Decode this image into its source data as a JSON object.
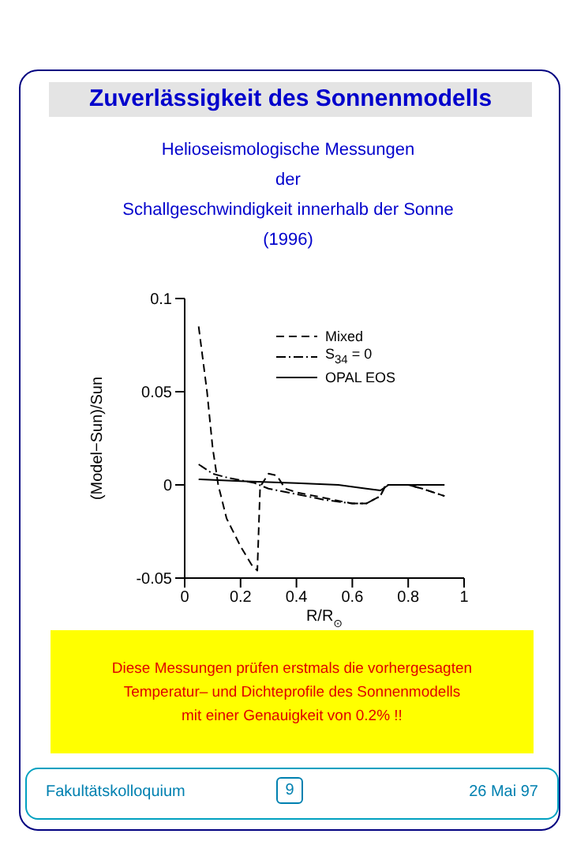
{
  "chart_data": {
    "type": "line",
    "title": "Zuverlässigkeit des Sonnenmodells",
    "subtitle": "Helioseismologische Messungen\nder\nSchallgeschwindigkeit innerhalb der Sonne\n(1996)",
    "xlabel": "R/R$_{⊙}$",
    "ylabel": "(Model−Sun)/Sun",
    "xlim": [
      0,
      1
    ],
    "xticks": [
      0,
      0.2,
      0.4,
      0.6,
      0.8,
      1
    ],
    "ylim": [
      -0.05,
      0.1
    ],
    "yticks": [
      -0.05,
      0,
      0.05,
      0.1
    ],
    "grid": false,
    "legend": "top right",
    "marker": "none",
    "series": [
      {
        "name": "Mixed",
        "color": "#000000",
        "line_style": "dashed",
        "x": [
          0.05,
          0.08,
          0.1,
          0.12,
          0.15,
          0.2,
          0.24,
          0.26,
          0.27,
          0.3,
          0.33,
          0.36,
          0.4,
          0.5,
          0.6,
          0.65,
          0.7,
          0.72,
          0.8,
          0.85,
          0.93
        ],
        "values": [
          0.085,
          0.05,
          0.02,
          0.0,
          -0.018,
          -0.033,
          -0.043,
          -0.046,
          -0.001,
          0.006,
          0.005,
          -0.002,
          -0.004,
          -0.007,
          -0.01,
          -0.01,
          -0.006,
          0.0,
          0.0,
          -0.002,
          -0.006
        ]
      },
      {
        "name": "S$_{34}$ = 0",
        "color": "#000000",
        "line_style": "dotted",
        "x": [
          0.05,
          0.1,
          0.15,
          0.25,
          0.3,
          0.4,
          0.5,
          0.6,
          0.65,
          0.7,
          0.72,
          0.8,
          0.85,
          0.93
        ],
        "values": [
          0.011,
          0.006,
          0.004,
          0.001,
          -0.002,
          -0.005,
          -0.008,
          -0.01,
          -0.01,
          -0.006,
          0.0,
          0.0,
          -0.002,
          -0.006
        ]
      },
      {
        "name": "OPAL EOS",
        "color": "#000000",
        "line_style": "solid",
        "x": [
          0.05,
          0.2,
          0.4,
          0.55,
          0.65,
          0.7,
          0.73,
          0.8,
          0.93
        ],
        "values": [
          0.003,
          0.002,
          0.001,
          0.0,
          -0.002,
          -0.003,
          0.0,
          0.0,
          0.0
        ]
      }
    ],
    "annotations": [
      "Diese Messungen prüfen erstmals die vorhergesagten\nTemperatur– und Dichteprofile des Sonnenmodells\nmit einer Genauigkeit von 0.2% !!",
      "Fakultätskolloquium",
      "9",
      "26 Mai 97"
    ]
  }
}
